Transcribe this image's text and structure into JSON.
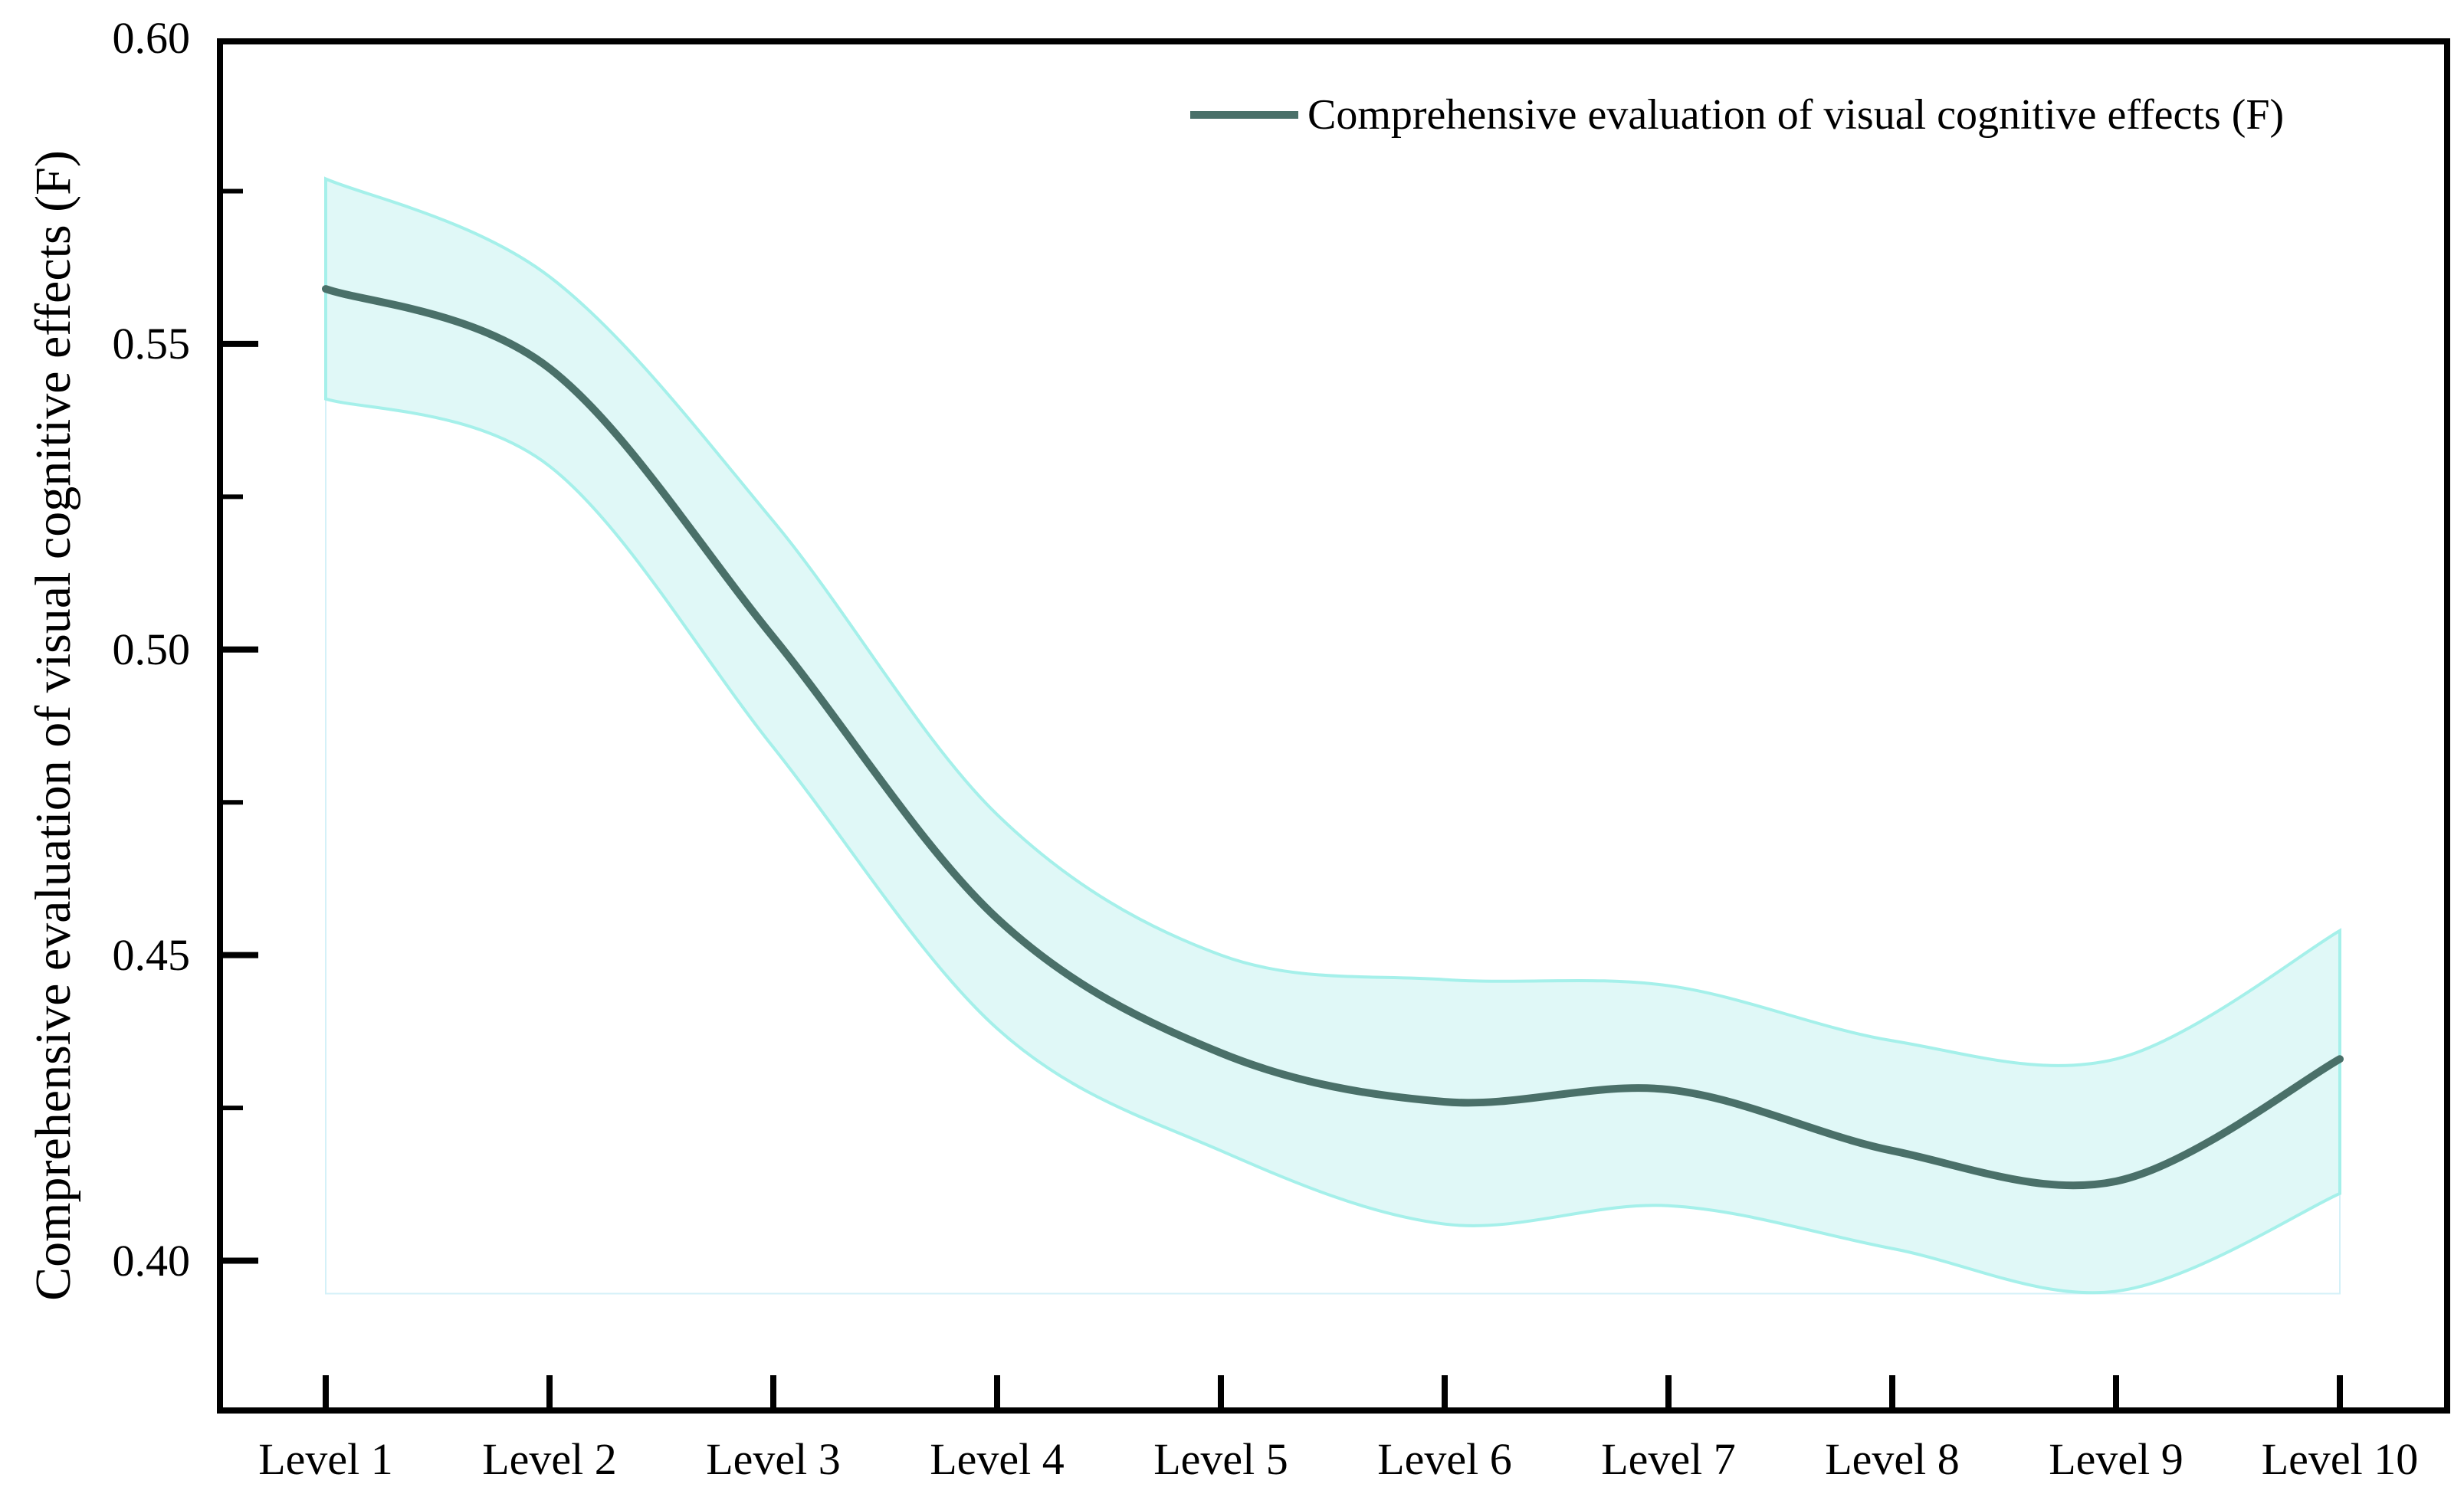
{
  "page": {
    "background": "#ffffff"
  },
  "chart_data": {
    "type": "line",
    "title": "",
    "xlabel": "",
    "ylabel": "Comprehensive evaluation of visual cognitive effects (F)",
    "categories": [
      "Level 1",
      "Level 2",
      "Level 3",
      "Level 4",
      "Level 5",
      "Level 6",
      "Level 7",
      "Level 8",
      "Level 9",
      "Level 10"
    ],
    "x": [
      1,
      2,
      3,
      4,
      5,
      6,
      7,
      8,
      9,
      10
    ],
    "series": [
      {
        "name": "Comprehensive evaluation of visual cognitive effects (F)",
        "values": [
          0.559,
          0.546,
          0.502,
          0.456,
          0.434,
          0.426,
          0.428,
          0.418,
          0.413,
          0.433
        ],
        "color": "#4a7069",
        "line_width": 10
      }
    ],
    "confidence_band": {
      "upper": [
        0.577,
        0.561,
        0.521,
        0.473,
        0.45,
        0.446,
        0.445,
        0.436,
        0.433,
        0.454
      ],
      "lower": [
        0.541,
        0.53,
        0.484,
        0.438,
        0.418,
        0.406,
        0.409,
        0.402,
        0.395,
        0.411
      ],
      "fill_color": "#e0f8f7",
      "edge_color": "#a5f0ea",
      "extent_outline_color": "#d4f1f8"
    },
    "ylim": [
      0.375,
      0.6
    ],
    "yticks": {
      "major": [
        0.6,
        0.55,
        0.5,
        0.45,
        0.4
      ],
      "major_labels": [
        "0.60",
        "0.55",
        "0.50",
        "0.45",
        "0.40"
      ],
      "minor": [
        0.575,
        0.525,
        0.475,
        0.425
      ]
    },
    "grid": false,
    "frame_color": "#000000",
    "legend": {
      "position": "top-right-inside",
      "entries": [
        {
          "label": "Comprehensive evaluation of visual cognitive effects (F)",
          "color": "#4a7069"
        }
      ]
    }
  }
}
